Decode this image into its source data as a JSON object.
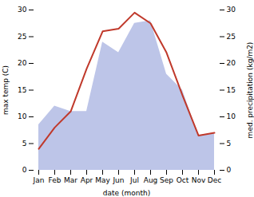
{
  "chart_data": {
    "type": "line",
    "xlabel": "date (month)",
    "ylabel": "max temp (C)",
    "y2label": "med. precipitation (kg/m2)",
    "categories": [
      "Jan",
      "Feb",
      "Mar",
      "Apr",
      "May",
      "Jun",
      "Jul",
      "Aug",
      "Sep",
      "Oct",
      "Nov",
      "Dec"
    ],
    "series": [
      {
        "type": "area",
        "axis": "y2",
        "color": "#bdc5e8",
        "values": [
          8.5,
          12,
          11,
          11,
          24,
          22,
          27.5,
          28,
          18,
          15,
          6.5,
          7
        ]
      },
      {
        "type": "line",
        "color": "#c0392b",
        "values": [
          4,
          8,
          11,
          19,
          26,
          26.5,
          29.5,
          27.5,
          22,
          14,
          6.5,
          7
        ]
      }
    ],
    "ylim": [
      0,
      30
    ],
    "yticks": [
      0,
      5,
      10,
      15,
      20,
      25,
      30
    ],
    "y2lim": [
      0,
      30
    ],
    "y2ticks": [
      0,
      5,
      10,
      15,
      20,
      25,
      30
    ]
  }
}
